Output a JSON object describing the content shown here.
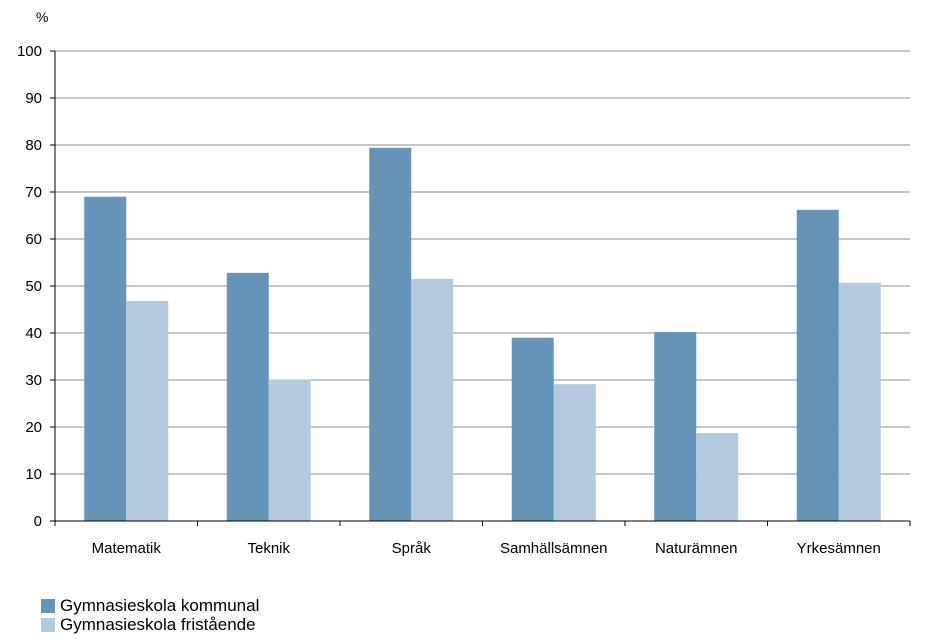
{
  "chart_data": {
    "type": "bar",
    "ylabel": "%",
    "ylim": [
      0,
      100
    ],
    "yticks": [
      0,
      10,
      20,
      30,
      40,
      50,
      60,
      70,
      80,
      90,
      100
    ],
    "grid": true,
    "legend_position": "bottom-left",
    "categories": [
      "Matematik",
      "Teknik",
      "Språk",
      "Samhällsämnen",
      "Naturämnen",
      "Yrkesämnen"
    ],
    "series": [
      {
        "name": "Gymnasieskola kommunal",
        "color": "#6594b8",
        "values": [
          69,
          52.8,
          79.4,
          39,
          40.2,
          66.2
        ]
      },
      {
        "name": "Gymnasieskola fristående",
        "color": "#b3c9dd",
        "values": [
          46.8,
          30.1,
          51.5,
          29.1,
          18.7,
          50.7
        ]
      }
    ]
  }
}
